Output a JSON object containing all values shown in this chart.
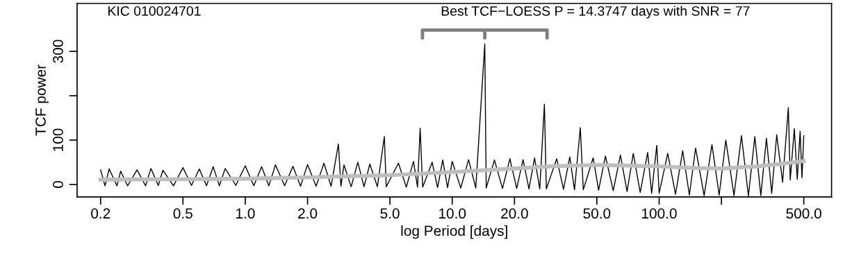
{
  "chart_data": {
    "type": "line",
    "xlabel": "log Period [days]",
    "ylabel": "TCF power",
    "log": "x",
    "grid": false,
    "marker": "none",
    "line_style": "solid",
    "xlim": [
      0.154,
      681
    ],
    "ylim": [
      -28,
      408
    ],
    "xticks": [
      {
        "value": 0.2,
        "label": "0.2"
      },
      {
        "value": 0.5,
        "label": "0.5"
      },
      {
        "value": 1,
        "label": "1.0"
      },
      {
        "value": 2,
        "label": "2.0"
      },
      {
        "value": 5,
        "label": "5.0"
      },
      {
        "value": 10,
        "label": "10.0"
      },
      {
        "value": 20,
        "label": "20.0"
      },
      {
        "value": 50,
        "label": "50.0"
      },
      {
        "value": 100,
        "label": "100.0"
      },
      {
        "value": 200,
        "label": null
      },
      {
        "value": 500,
        "label": "500.0"
      }
    ],
    "yticks": [
      0,
      100,
      {
        "value": 200,
        "label": null
      },
      300
    ],
    "annotations": [
      "KIC 010024701",
      "Best TCF−LOESS P = 14.3747 days with SNR = 77"
    ],
    "series": [
      {
        "color": "#000000",
        "x": [
          0.2,
          0.21,
          0.22,
          0.24,
          0.25,
          0.27,
          0.3,
          0.33,
          0.35,
          0.38,
          0.4,
          0.45,
          0.5,
          0.55,
          0.6,
          0.65,
          0.7,
          0.75,
          0.8,
          0.9,
          1.0,
          1.1,
          1.2,
          1.3,
          1.4,
          1.55,
          1.7,
          1.85,
          2.0,
          2.2,
          2.4,
          2.6,
          2.82,
          2.9,
          3.0,
          3.25,
          3.5,
          3.75,
          4.0,
          4.35,
          4.7,
          4.8,
          5.5,
          6.0,
          6.5,
          6.8,
          7.0,
          7.2,
          8.0,
          8.5,
          9.0,
          9.5,
          10.0,
          11.0,
          12.0,
          13.0,
          14.37,
          14.6,
          16.0,
          17.5,
          19.0,
          20.5,
          22.0,
          23.5,
          25.0,
          26.5,
          27.9,
          28.5,
          32.0,
          34.5,
          37.0,
          39.0,
          41.6,
          43.0,
          48.0,
          51.0,
          55.0,
          60.0,
          65.0,
          70.0,
          75.0,
          81.0,
          88.0,
          92.0,
          97.4,
          100.0,
          110.0,
          120.0,
          130.0,
          140.0,
          150.0,
          165.0,
          180.0,
          195.0,
          210.0,
          230.0,
          250.0,
          270.0,
          290.0,
          310.0,
          330.0,
          350.0,
          370.0,
          395.0,
          421.0,
          430.0,
          450.0,
          465.0,
          480.0,
          490.0,
          500.0
        ],
        "values": [
          33,
          -3,
          35,
          -3,
          30,
          -3,
          33,
          -3,
          36,
          -2,
          32,
          -3,
          38,
          -2,
          35,
          -3,
          40,
          -3,
          36,
          -2,
          42,
          -3,
          40,
          -3,
          44,
          -3,
          41,
          -4,
          45,
          -4,
          48,
          -4,
          91,
          -4,
          44,
          -5,
          50,
          -5,
          46,
          -5,
          108,
          -5,
          48,
          -6,
          52,
          -6,
          127,
          -6,
          50,
          -7,
          55,
          -7,
          52,
          -8,
          56,
          -8,
          317,
          -8,
          55,
          -9,
          58,
          -9,
          56,
          -10,
          60,
          -10,
          181,
          -10,
          58,
          -11,
          62,
          -12,
          128,
          -12,
          60,
          -13,
          64,
          -14,
          66,
          -16,
          70,
          -18,
          72,
          -20,
          88,
          -20,
          70,
          -22,
          76,
          -24,
          82,
          -25,
          90,
          -24,
          100,
          -25,
          110,
          -26,
          108,
          -25,
          104,
          -20,
          112,
          5,
          173,
          10,
          126,
          12,
          120,
          15,
          110
        ]
      },
      {
        "color": "#bebebe",
        "x": [
          0.2,
          0.5,
          1.0,
          2.0,
          5.0,
          10.0,
          20.0,
          30.0,
          50.0,
          100.0,
          150.0,
          200.0,
          300.0,
          400.0,
          500.0
        ],
        "values": [
          11,
          12,
          13,
          16,
          21,
          28,
          36,
          41,
          44,
          41,
          37,
          36,
          41,
          47,
          53
        ]
      }
    ]
  }
}
